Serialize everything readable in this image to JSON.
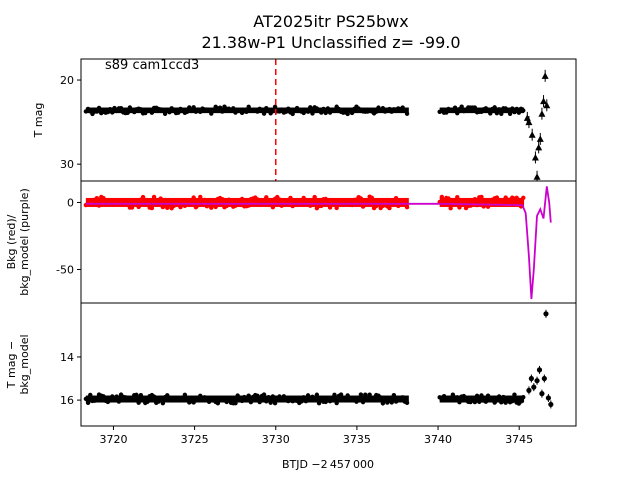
{
  "figure": {
    "title_line1": "AT2025itr  PS25bwx",
    "title_line2": "21.38w-P1 Unclassified z= -99.0",
    "annotation": "s89 cam1ccd3",
    "xlabel": "BTJD −2 457 000",
    "colors": {
      "data": "#000000",
      "background": "#ff0000",
      "model": "#cc00cc",
      "marker_line": "#ff0000"
    }
  },
  "chart_data": [
    {
      "type": "scatter",
      "panel": "top",
      "ylabel": "T mag",
      "y_inverted": true,
      "xlim": [
        3718.0,
        3748.5
      ],
      "ylim": [
        32.0,
        17.5
      ],
      "yticks": [
        20,
        30
      ],
      "xticks": [],
      "vertical_line_x": 3730.0,
      "series": [
        {
          "segments": [
            {
              "x_start": 3718.3,
              "x_end": 3738.2,
              "y": 23.6
            },
            {
              "x_start": 3740.1,
              "x_end": 3745.3,
              "y": 23.6
            }
          ],
          "x": [
            3745.5,
            3745.6,
            3745.8,
            3746.0,
            3746.1,
            3746.2,
            3746.3,
            3746.4,
            3746.5,
            3746.6,
            3746.7
          ],
          "y": [
            24.5,
            25.0,
            26.5,
            29.2,
            31.5,
            28.0,
            27.0,
            24.0,
            22.5,
            19.5,
            23.0
          ]
        }
      ]
    },
    {
      "type": "scatter",
      "panel": "middle",
      "ylabel": "Bkg (red)/\nbkg_model (purple)",
      "xlim": [
        3718.0,
        3748.5
      ],
      "ylim": [
        -75,
        16
      ],
      "yticks": [
        0,
        -50
      ],
      "xticks": [],
      "series": [
        {
          "name": "Bkg",
          "segments": [
            {
              "x_start": 3718.3,
              "x_end": 3738.2,
              "y": 0
            },
            {
              "x_start": 3740.1,
              "x_end": 3745.3,
              "y": 0
            }
          ]
        },
        {
          "name": "bkg_model",
          "x": [
            3718.3,
            3738.2,
            3740.1,
            3745.2,
            3745.4,
            3745.6,
            3745.75,
            3745.9,
            3746.1,
            3746.3,
            3746.5,
            3746.7,
            3746.85,
            3746.95
          ],
          "y": [
            -1,
            -1,
            -1,
            -2,
            -8,
            -40,
            -72,
            -50,
            -10,
            -5,
            -12,
            12,
            0,
            -15
          ]
        }
      ]
    },
    {
      "type": "scatter",
      "panel": "bottom",
      "ylabel": "T mag −\nbkg_model",
      "y_inverted": true,
      "xlim": [
        3718.0,
        3748.5
      ],
      "ylim": [
        17.2,
        11.5
      ],
      "yticks": [
        14,
        16
      ],
      "xticks": [
        3720,
        3725,
        3730,
        3735,
        3740,
        3745
      ],
      "series": [
        {
          "segments": [
            {
              "x_start": 3718.3,
              "x_end": 3738.2,
              "y": 15.95
            },
            {
              "x_start": 3740.1,
              "x_end": 3745.3,
              "y": 15.95
            }
          ],
          "x": [
            3745.6,
            3745.75,
            3745.9,
            3746.1,
            3746.25,
            3746.4,
            3746.55,
            3746.65,
            3746.8,
            3746.95
          ],
          "y": [
            15.55,
            15.0,
            15.4,
            15.1,
            14.6,
            15.7,
            15.0,
            12.0,
            15.9,
            16.2
          ]
        }
      ]
    }
  ]
}
